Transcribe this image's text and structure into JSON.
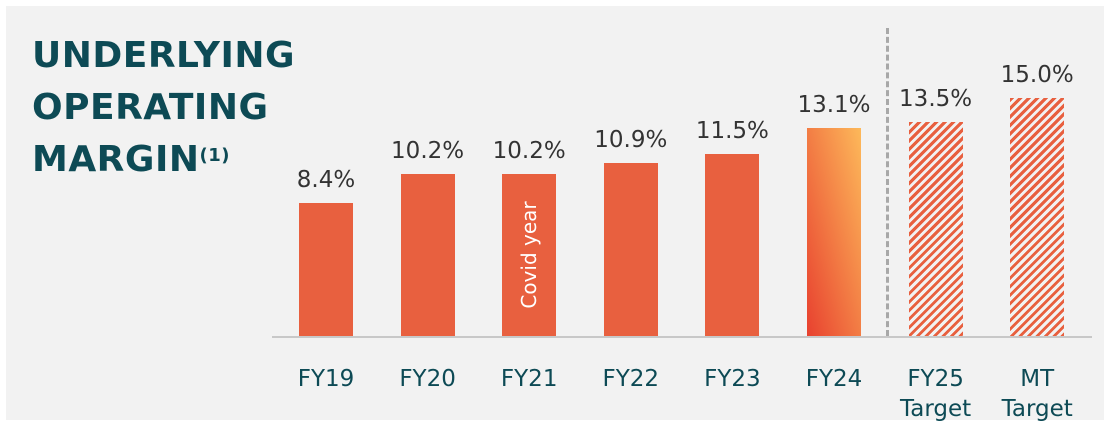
{
  "chart_data": {
    "type": "bar",
    "title": "UNDERLYING OPERATING MARGIN",
    "title_note": "(1)",
    "categories": [
      "FY19",
      "FY20",
      "FY21",
      "FY22",
      "FY23",
      "FY24",
      "FY25 Target",
      "MT Target"
    ],
    "values": [
      8.4,
      10.2,
      10.2,
      10.9,
      11.5,
      13.1,
      13.5,
      15.0
    ],
    "value_labels": [
      "8.4%",
      "10.2%",
      "10.2%",
      "10.9%",
      "11.5%",
      "13.1%",
      "13.5%",
      "15.0%"
    ],
    "bar_styles": [
      "solid",
      "solid",
      "solid",
      "solid",
      "solid",
      "gradient",
      "hatch",
      "hatch"
    ],
    "color": "#e8603f",
    "annotations": [
      {
        "text": "Covid year",
        "category": 2
      }
    ],
    "ylim": [
      0,
      15.0
    ]
  }
}
